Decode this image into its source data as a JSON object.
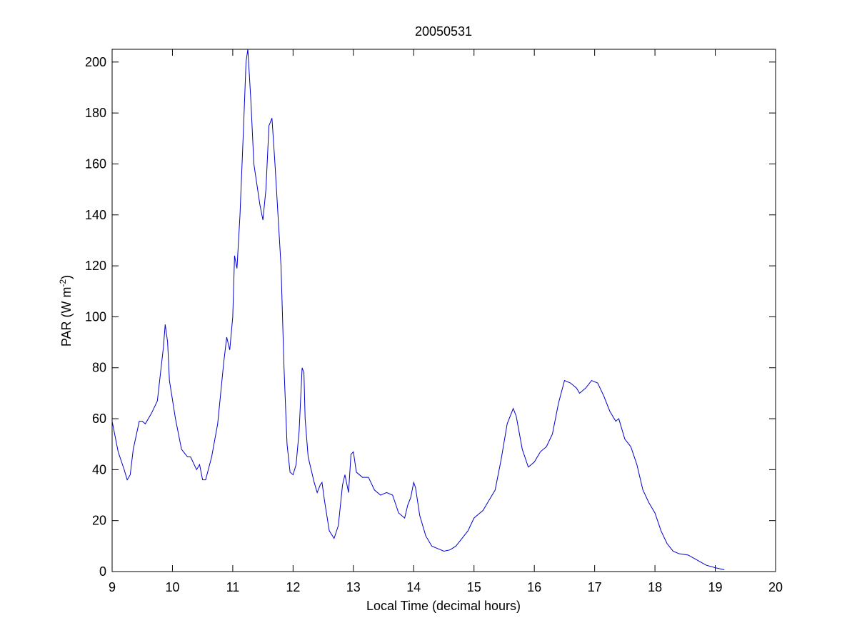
{
  "chart_data": {
    "type": "line",
    "title": "20050531",
    "xlabel": "Local Time (decimal hours)",
    "ylabel": [
      "PAR (W m",
      "-2",
      ")"
    ],
    "xlim": [
      9,
      20
    ],
    "xticks": [
      9,
      10,
      11,
      12,
      13,
      14,
      15,
      16,
      17,
      18,
      19,
      20
    ],
    "ylim": [
      0,
      205
    ],
    "yticks": [
      0,
      20,
      40,
      60,
      80,
      100,
      120,
      140,
      160,
      180,
      200
    ],
    "series": [
      {
        "color": "#0000cc",
        "x": [
          9.0,
          9.1,
          9.2,
          9.25,
          9.3,
          9.35,
          9.45,
          9.5,
          9.55,
          9.65,
          9.75,
          9.85,
          9.88,
          9.92,
          9.95,
          10.05,
          10.15,
          10.25,
          10.3,
          10.4,
          10.45,
          10.5,
          10.55,
          10.65,
          10.75,
          10.85,
          10.9,
          10.95,
          11.0,
          11.03,
          11.07,
          11.12,
          11.18,
          11.22,
          11.25,
          11.3,
          11.35,
          11.45,
          11.5,
          11.55,
          11.6,
          11.65,
          11.7,
          11.8,
          11.85,
          11.9,
          11.95,
          12.0,
          12.05,
          12.1,
          12.15,
          12.18,
          12.2,
          12.25,
          12.35,
          12.4,
          12.45,
          12.48,
          12.52,
          12.6,
          12.68,
          12.75,
          12.82,
          12.86,
          12.92,
          12.96,
          13.0,
          13.05,
          13.15,
          13.25,
          13.35,
          13.45,
          13.55,
          13.65,
          13.75,
          13.85,
          13.9,
          13.95,
          14.0,
          14.03,
          14.1,
          14.2,
          14.3,
          14.4,
          14.5,
          14.6,
          14.7,
          14.8,
          14.9,
          15.0,
          15.05,
          15.15,
          15.25,
          15.35,
          15.45,
          15.55,
          15.65,
          15.7,
          15.8,
          15.9,
          16.0,
          16.1,
          16.2,
          16.3,
          16.4,
          16.5,
          16.6,
          16.7,
          16.75,
          16.85,
          16.95,
          17.05,
          17.15,
          17.25,
          17.35,
          17.4,
          17.5,
          17.6,
          17.7,
          17.8,
          17.9,
          18.0,
          18.1,
          18.2,
          18.3,
          18.4,
          18.55,
          18.7,
          18.85,
          19.0,
          19.15
        ],
        "values": [
          59,
          47,
          40,
          36,
          38,
          48,
          59,
          59,
          58,
          62,
          67,
          88,
          97,
          90,
          75,
          60,
          48,
          45,
          45,
          40,
          42,
          36,
          36,
          45,
          58,
          82,
          92,
          87,
          100,
          124,
          119,
          140,
          175,
          200,
          205,
          185,
          160,
          144,
          138,
          150,
          175,
          178,
          160,
          120,
          80,
          50,
          39,
          38,
          42,
          55,
          80,
          78,
          60,
          45,
          35,
          31,
          34,
          35,
          28,
          16,
          13,
          18,
          34,
          38,
          31,
          46,
          47,
          39,
          37,
          37,
          32,
          30,
          31,
          30,
          23,
          21,
          26,
          29,
          35,
          33,
          22,
          14,
          10,
          9,
          8,
          8.5,
          10,
          13,
          16,
          21,
          22,
          24,
          28,
          32,
          44,
          58,
          64,
          61,
          48,
          41,
          43,
          47,
          49,
          54,
          66,
          75,
          74,
          72,
          70,
          72,
          75,
          74,
          69,
          63,
          59,
          60,
          52,
          49,
          42,
          32,
          27,
          23,
          16,
          11,
          8,
          7,
          6.5,
          4.5,
          2.5,
          1.5,
          0.7
        ]
      }
    ]
  }
}
